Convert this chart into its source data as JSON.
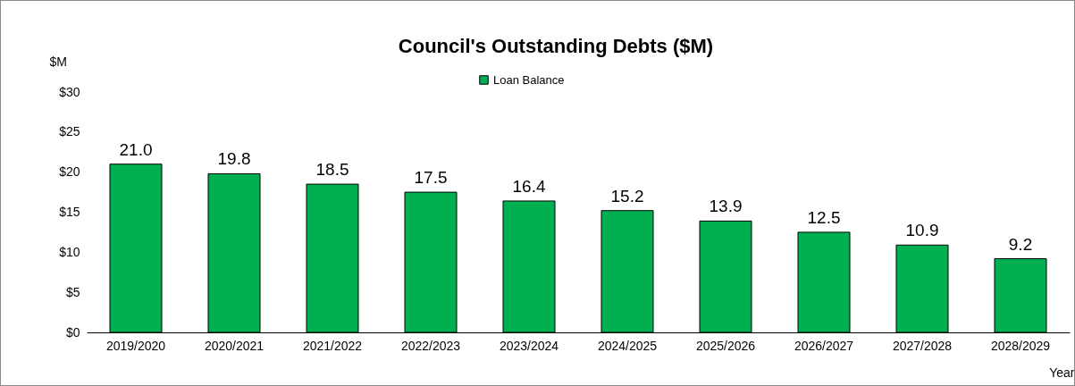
{
  "chart_data": {
    "type": "bar",
    "title": "Council's Outstanding Debts  ($M)",
    "ylabel": "$M",
    "xlabel": "Year",
    "categories": [
      "2019/2020",
      "2020/2021",
      "2021/2022",
      "2022/2023",
      "2023/2024",
      "2024/2025",
      "2025/2026",
      "2026/2027",
      "2027/2028",
      "2028/2029"
    ],
    "series": [
      {
        "name": "Loan Balance",
        "color": "#00b050",
        "values": [
          21.0,
          19.8,
          18.5,
          17.5,
          16.4,
          15.2,
          13.9,
          12.5,
          10.9,
          9.2
        ]
      }
    ],
    "ylim": [
      0,
      30
    ],
    "yticks": [
      {
        "value": 0,
        "label": "$0"
      },
      {
        "value": 5,
        "label": "$5"
      },
      {
        "value": 10,
        "label": "$10"
      },
      {
        "value": 15,
        "label": "$15"
      },
      {
        "value": 20,
        "label": "$20"
      },
      {
        "value": 25,
        "label": "$25"
      },
      {
        "value": 30,
        "label": "$30"
      }
    ],
    "value_labels": [
      "21.0",
      "19.8",
      "18.5",
      "17.5",
      "16.4",
      "15.2",
      "13.9",
      "12.5",
      "10.9",
      "9.2"
    ],
    "legend": "top",
    "grid": false
  }
}
